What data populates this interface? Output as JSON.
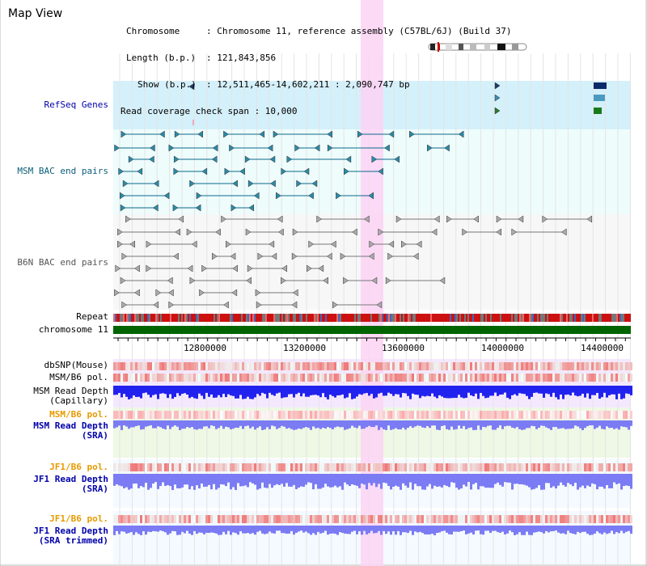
{
  "title": "Map View",
  "header": {
    "chromosome_key": "Chromosome",
    "chromosome_val": ": Chromosome 11, reference assembly (C57BL/6J) (Build 37)",
    "length_key": "Length (b.p.)",
    "length_val": ": 121,843,856",
    "show_key": "Show (b.p.)",
    "show_val": ": 12,511,465-14,602,211 : 2,090,747 bp",
    "coverage": "Read coverage check span : 10,000"
  },
  "tracks": {
    "refseq": "RefSeq Genes",
    "msm_bac": "MSM BAC end pairs",
    "b6n_bac": "B6N BAC end pairs",
    "repeat": "Repeat",
    "chromosome": "chromosome 11",
    "dbsnp": "dbSNP(Mouse)",
    "msm_pol": "MSM/B6 pol.",
    "msm_depth_cap_1": "MSM Read Depth",
    "msm_depth_cap_2": "(Capillary)",
    "msm_pol_sra": "MSM/B6 pol.",
    "msm_depth_sra_1": "MSM Read Depth",
    "msm_depth_sra_2": "(SRA)",
    "jf1_pol": "JF1/B6 pol.",
    "jf1_depth_1": "JF1 Read Depth",
    "jf1_depth_2": "(SRA)",
    "jf1_pol_trim": "JF1/B6 pol.",
    "jf1_depth_trim_1": "JF1 Read Depth",
    "jf1_depth_trim_2": "(SRA trimmed)"
  },
  "ruler": {
    "ticks": [
      "12800000",
      "13200000",
      "13600000",
      "14000000",
      "14400000"
    ]
  },
  "colors": {
    "refseq_bg": "#d4f0fa",
    "bac_bg": "#eefcfc",
    "msm_link": "#0b6a8a",
    "b6n_link": "#777777",
    "highlight": "#fbd4f4",
    "chromosome": "#006400",
    "repeat": "#cc0000",
    "depth_blue": "#2222ee",
    "depth_light": "#7b7bf4",
    "pol_label": "#e69a00",
    "depth_label": "#0000aa"
  }
}
